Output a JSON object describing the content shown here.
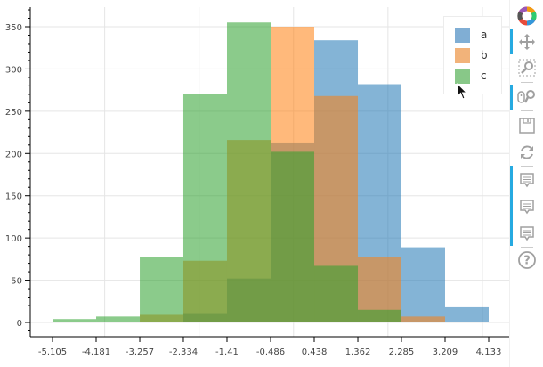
{
  "chart_data": {
    "type": "bar",
    "title": "",
    "xlabel": "",
    "ylabel": "",
    "bin_edges": [
      -5.105,
      -4.181,
      -3.257,
      -2.334,
      -1.41,
      -0.486,
      0.438,
      1.362,
      2.285,
      3.209,
      4.133
    ],
    "x_tick_labels": [
      "-5.105",
      "-4.181",
      "-3.257",
      "-2.334",
      "-1.41",
      "-0.486",
      "0.438",
      "1.362",
      "2.285",
      "3.209",
      "4.133"
    ],
    "y_tick_labels": [
      "0",
      "50",
      "100",
      "150",
      "200",
      "250",
      "300",
      "350"
    ],
    "ylim": [
      -17,
      373
    ],
    "grid": true,
    "legend_position": "top-right",
    "series": [
      {
        "name": "a",
        "color": "#1f77b4",
        "alpha": 0.55,
        "values": [
          0,
          0,
          0,
          11,
          52,
          213,
          334,
          282,
          89,
          18
        ]
      },
      {
        "name": "b",
        "color": "#ff7f0e",
        "alpha": 0.55,
        "values": [
          0,
          0,
          9,
          73,
          216,
          350,
          268,
          77,
          7,
          0
        ]
      },
      {
        "name": "c",
        "color": "#2ca02c",
        "alpha": 0.55,
        "values": [
          4,
          7,
          78,
          270,
          355,
          202,
          67,
          15,
          0,
          0
        ]
      }
    ]
  },
  "legend": {
    "items": [
      {
        "label": "a",
        "color": "#80aed4"
      },
      {
        "label": "b",
        "color": "#f2b37a"
      },
      {
        "label": "c",
        "color": "#88c888"
      }
    ]
  },
  "toolbar": {
    "tools": [
      {
        "name": "bokeh-logo",
        "glyph": ""
      },
      {
        "name": "pan-tool",
        "glyph": "✥",
        "active": true
      },
      {
        "name": "box-zoom-tool",
        "glyph": "⌕",
        "active": false
      },
      {
        "name": "wheel-zoom-tool",
        "glyph": "⚲",
        "active": true
      },
      {
        "name": "save-tool",
        "glyph": "💾",
        "active": false
      },
      {
        "name": "reset-tool",
        "glyph": "⟳",
        "active": false
      },
      {
        "name": "hover-tool-a",
        "glyph": "▤",
        "active": true
      },
      {
        "name": "hover-tool-b",
        "glyph": "▤",
        "active": true
      },
      {
        "name": "hover-tool-c",
        "glyph": "▤",
        "active": true
      },
      {
        "name": "help-tool",
        "glyph": "?",
        "active": false
      }
    ]
  }
}
